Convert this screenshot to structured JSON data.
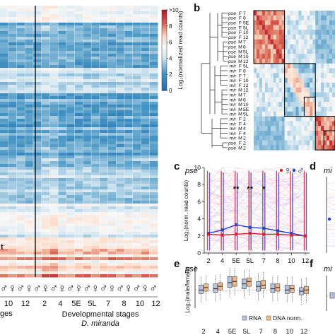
{
  "figure": {
    "panel_letters": [
      "b",
      "c",
      "d",
      "e",
      "f"
    ],
    "heatmap_main": {
      "colorbar_ticks": [
        "10",
        "8",
        "6",
        "4",
        "2",
        "0"
      ],
      "colorbar_top_prefix": ">",
      "colorbar_label": "Log₂(normalized read counts)",
      "stage_labels_left": [
        "10",
        "12"
      ],
      "stage_labels_right": [
        "2",
        "4",
        "5E",
        "5L",
        "7",
        "8",
        "10",
        "12"
      ],
      "xlabel_left": "ges",
      "xlabel_right": "Developmental stages",
      "species_right": "D. miranda",
      "species_left_fragment": "t"
    },
    "clustering": {
      "rows": [
        {
          "species": "pse",
          "sex": "F",
          "stage": "7"
        },
        {
          "species": "pse",
          "sex": "F",
          "stage": "8"
        },
        {
          "species": "pse",
          "sex": "F",
          "stage": "5E"
        },
        {
          "species": "pse",
          "sex": "F",
          "stage": "5L"
        },
        {
          "species": "pse",
          "sex": "F",
          "stage": "10"
        },
        {
          "species": "pse",
          "sex": "F",
          "stage": "12"
        },
        {
          "species": "pse",
          "sex": "M",
          "stage": "7"
        },
        {
          "species": "pse",
          "sex": "M",
          "stage": "8"
        },
        {
          "species": "pse",
          "sex": "M",
          "stage": "5L"
        },
        {
          "species": "pse",
          "sex": "M",
          "stage": "10"
        },
        {
          "species": "pse",
          "sex": "M",
          "stage": "12"
        },
        {
          "species": "mir",
          "sex": "F",
          "stage": "5L"
        },
        {
          "species": "mir",
          "sex": "F",
          "stage": "8"
        },
        {
          "species": "mir",
          "sex": "F",
          "stage": "7"
        },
        {
          "species": "mir",
          "sex": "F",
          "stage": "10"
        },
        {
          "species": "mir",
          "sex": "F",
          "stage": "12"
        },
        {
          "species": "mir",
          "sex": "M",
          "stage": "12"
        },
        {
          "species": "mir",
          "sex": "M",
          "stage": "7"
        },
        {
          "species": "mir",
          "sex": "M",
          "stage": "8"
        },
        {
          "species": "mir",
          "sex": "M",
          "stage": "10"
        },
        {
          "species": "mir",
          "sex": "M",
          "stage": "5E"
        },
        {
          "species": "mir",
          "sex": "M",
          "stage": "5L"
        },
        {
          "species": "mir",
          "sex": "F",
          "stage": "2"
        },
        {
          "species": "mir",
          "sex": "F",
          "stage": "4"
        },
        {
          "species": "mir",
          "sex": "M",
          "stage": "4"
        },
        {
          "species": "mir",
          "sex": "F",
          "stage": "4"
        },
        {
          "species": "mir",
          "sex": "M",
          "stage": "2"
        },
        {
          "species": "pse",
          "sex": "F",
          "stage": "2"
        },
        {
          "species": "pse",
          "sex": "M",
          "stage": "2"
        }
      ]
    }
  },
  "chart_data": [
    {
      "panel": "c",
      "type": "line",
      "title": "pse",
      "ylabel": "Log₂(norm. read counts)",
      "ylim": [
        0,
        10
      ],
      "y_ticks": [
        "0",
        "2",
        "4",
        "6",
        "8",
        "10"
      ],
      "categories": [
        "2",
        "4",
        "5E",
        "5L",
        "7",
        "8",
        "10",
        "12"
      ],
      "legend": {
        "female_symbol": "♀",
        "male_symbol": "♂"
      },
      "series": [
        {
          "values": [
            2.3,
            2.7,
            3.3,
            3.0,
            2.9,
            2.6,
            2.3,
            2.0
          ]
        },
        {
          "values": [
            2.2,
            2.1,
            2.2,
            2.3,
            2.2,
            2.2,
            2.1,
            2.0
          ]
        }
      ],
      "significance": [
        {
          "category": "5E",
          "text": "**"
        },
        {
          "category": "5L",
          "text": "**"
        },
        {
          "category": "7",
          "text": "*"
        }
      ]
    },
    {
      "panel": "e",
      "type": "box",
      "title": "pse",
      "ylabel": "Log₂(male/female)",
      "categories": [
        "2",
        "4",
        "5E",
        "5L",
        "7",
        "8",
        "10",
        "12"
      ],
      "legend": [
        "RNA",
        "DNA norm."
      ],
      "boxes_rna": [
        {
          "q1": -0.3,
          "med": 0.0,
          "q3": 0.4
        },
        {
          "q1": -0.2,
          "med": 0.1,
          "q3": 0.5
        },
        {
          "q1": 0.2,
          "med": 0.6,
          "q3": 1.1
        },
        {
          "q1": 0.1,
          "med": 0.5,
          "q3": 0.9
        },
        {
          "q1": -0.1,
          "med": 0.3,
          "q3": 0.7
        },
        {
          "q1": -0.2,
          "med": 0.1,
          "q3": 0.5
        },
        {
          "q1": -0.3,
          "med": 0.0,
          "q3": 0.4
        },
        {
          "q1": -0.4,
          "med": -0.1,
          "q3": 0.2
        }
      ],
      "boxes_dna": [
        {
          "q1": -0.1,
          "med": 0.2,
          "q3": 0.5
        },
        {
          "q1": 0.0,
          "med": 0.3,
          "q3": 0.6
        },
        {
          "q1": 0.3,
          "med": 0.7,
          "q3": 1.1
        },
        {
          "q1": 0.3,
          "med": 0.7,
          "q3": 1.0
        },
        {
          "q1": 0.1,
          "med": 0.4,
          "q3": 0.8
        },
        {
          "q1": -0.1,
          "med": 0.2,
          "q3": 0.5
        },
        {
          "q1": -0.2,
          "med": 0.1,
          "q3": 0.4
        },
        {
          "q1": -0.3,
          "med": 0.0,
          "q3": 0.3
        }
      ]
    }
  ],
  "cropped_panels": {
    "d_title_fragment": "mi",
    "f_title_fragment": "mi"
  }
}
